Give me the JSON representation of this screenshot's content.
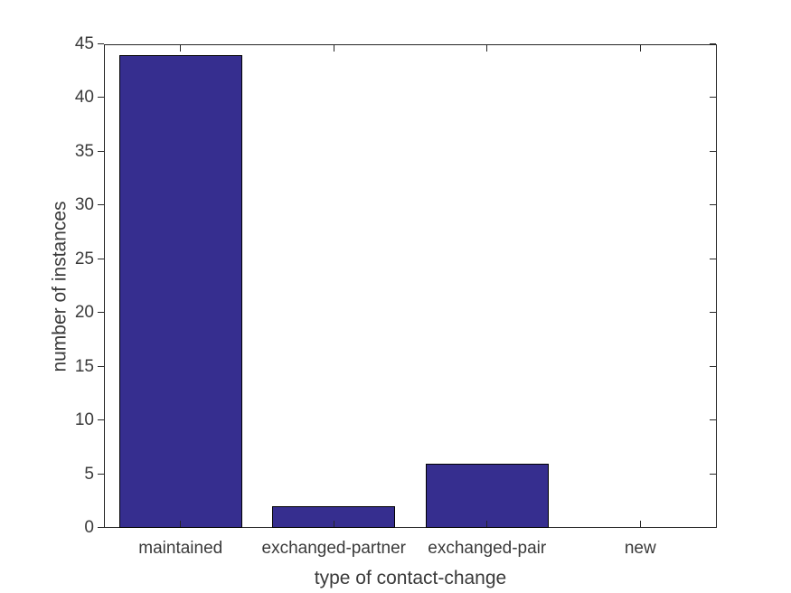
{
  "chart_data": {
    "type": "bar",
    "categories": [
      "maintained",
      "exchanged-partner",
      "exchanged-pair",
      "new"
    ],
    "values": [
      44,
      2,
      6,
      0
    ],
    "title": "",
    "xlabel": "type of contact-change",
    "ylabel": "number of instances",
    "ylim": [
      0,
      45
    ],
    "yticks": [
      0,
      5,
      10,
      15,
      20,
      25,
      30,
      35,
      40,
      45
    ],
    "grid": false,
    "legend_position": "none",
    "bar_width_fraction": 0.8,
    "colors": {
      "bar_fill": "#362E8F",
      "bar_edge": "#000000",
      "axis_line": "#262626",
      "text": "#3A3A3A",
      "background": "#FFFFFF"
    }
  }
}
